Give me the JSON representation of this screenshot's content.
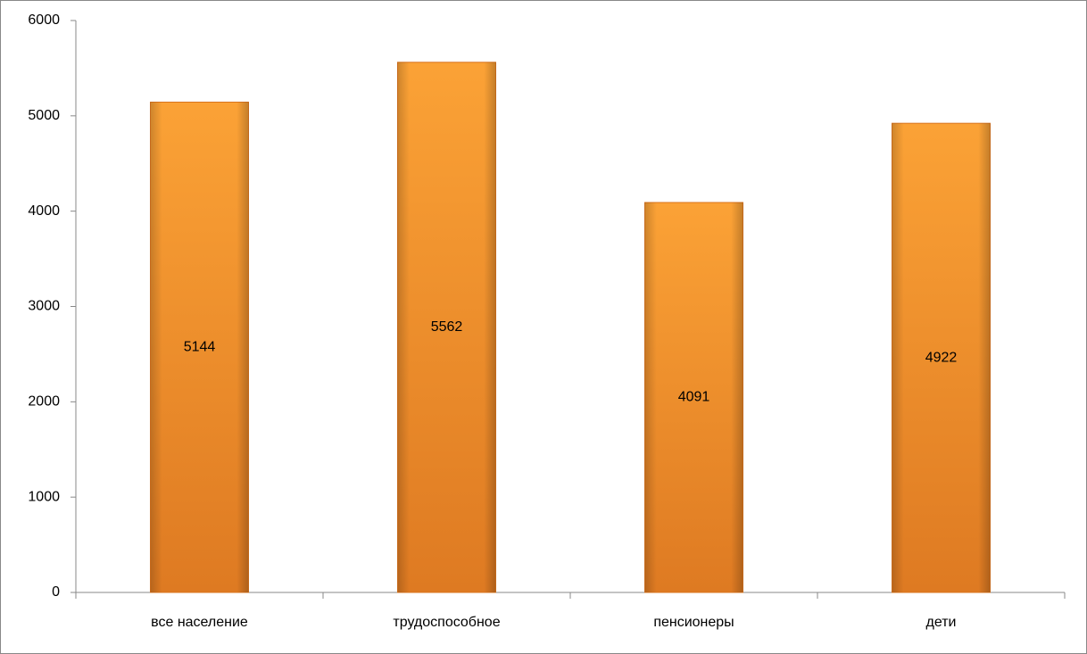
{
  "chart_data": {
    "type": "bar",
    "categories": [
      "все население",
      "трудоспособное",
      "пенсионеры",
      "дети"
    ],
    "values": [
      5144,
      5562,
      4091,
      4922
    ],
    "color": "#f28e26",
    "ylim": [
      0,
      6000
    ],
    "yticks": [
      0,
      1000,
      2000,
      3000,
      4000,
      5000,
      6000
    ],
    "grid": false,
    "data_labels": true
  }
}
